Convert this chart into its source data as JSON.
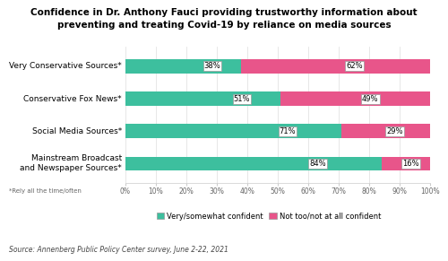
{
  "title": "Confidence in Dr. Anthony Fauci providing trustworthy information about\npreventing and treating Covid-19 by reliance on media sources",
  "categories": [
    "Mainstream Broadcast\nand Newspaper Sources*",
    "Social Media Sources*",
    "Conservative Fox News*",
    "Very Conservative Sources*"
  ],
  "confident_values": [
    84,
    71,
    51,
    38
  ],
  "not_confident_values": [
    16,
    29,
    49,
    62
  ],
  "color_confident": "#3dbf9e",
  "color_not_confident": "#e8558a",
  "footnote": "*Rely all the time/often",
  "source": "Source: Annenberg Public Policy Center survey, June 2-22, 2021",
  "legend_labels": [
    "Very/somewhat confident",
    "Not too/not at all confident"
  ],
  "background_color": "#ffffff",
  "bar_height": 0.42,
  "xlim": [
    0,
    100
  ],
  "xtick_labels": [
    "0%",
    "10%",
    "20%",
    "30%",
    "40%",
    "50%",
    "60%",
    "70%",
    "80%",
    "90%",
    "100%"
  ],
  "xtick_values": [
    0,
    10,
    20,
    30,
    40,
    50,
    60,
    70,
    80,
    90,
    100
  ]
}
